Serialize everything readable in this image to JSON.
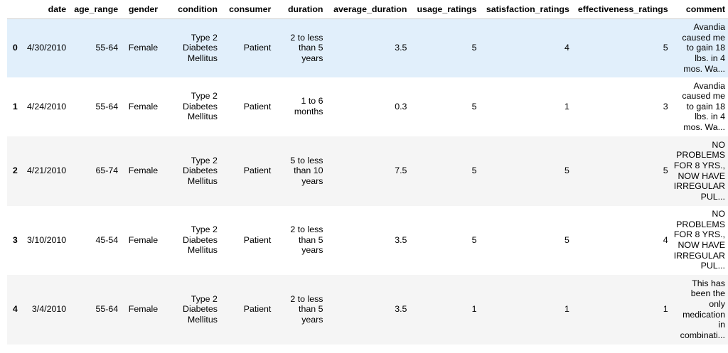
{
  "table": {
    "columns": [
      "date",
      "age_range",
      "gender",
      "condition",
      "consumer",
      "duration",
      "average_duration",
      "usage_ratings",
      "satisfaction_ratings",
      "effectiveness_ratings",
      "comment"
    ],
    "rows": [
      {
        "index": "0",
        "date": "4/30/2010",
        "age_range": "55-64",
        "gender": "Female",
        "condition": "Type 2 Diabetes Mellitus",
        "consumer": "Patient",
        "duration": "2 to less than 5 years",
        "average_duration": "3.5",
        "usage_ratings": "5",
        "satisfaction_ratings": "4",
        "effectiveness_ratings": "5",
        "comment": "Avandia caused me to gain 18 lbs. in 4 mos. Wa..."
      },
      {
        "index": "1",
        "date": "4/24/2010",
        "age_range": "55-64",
        "gender": "Female",
        "condition": "Type 2 Diabetes Mellitus",
        "consumer": "Patient",
        "duration": "1 to 6 months",
        "average_duration": "0.3",
        "usage_ratings": "5",
        "satisfaction_ratings": "1",
        "effectiveness_ratings": "3",
        "comment": "Avandia caused me to gain 18 lbs. in 4 mos. Wa..."
      },
      {
        "index": "2",
        "date": "4/21/2010",
        "age_range": "65-74",
        "gender": "Female",
        "condition": "Type 2 Diabetes Mellitus",
        "consumer": "Patient",
        "duration": "5 to less than 10 years",
        "average_duration": "7.5",
        "usage_ratings": "5",
        "satisfaction_ratings": "5",
        "effectiveness_ratings": "5",
        "comment": "NO PROBLEMS FOR 8 YRS., NOW HAVE IRREGULAR PUL..."
      },
      {
        "index": "3",
        "date": "3/10/2010",
        "age_range": "45-54",
        "gender": "Female",
        "condition": "Type 2 Diabetes Mellitus",
        "consumer": "Patient",
        "duration": "2 to less than 5 years",
        "average_duration": "3.5",
        "usage_ratings": "5",
        "satisfaction_ratings": "5",
        "effectiveness_ratings": "4",
        "comment": "NO PROBLEMS FOR 8 YRS., NOW HAVE IRREGULAR PUL..."
      },
      {
        "index": "4",
        "date": "3/4/2010",
        "age_range": "55-64",
        "gender": "Female",
        "condition": "Type 2 Diabetes Mellitus",
        "consumer": "Patient",
        "duration": "2 to less than 5 years",
        "average_duration": "3.5",
        "usage_ratings": "1",
        "satisfaction_ratings": "1",
        "effectiveness_ratings": "1",
        "comment": "This has been the only medication in combinati..."
      }
    ]
  },
  "colors": {
    "hover_row": "#e1effb",
    "striped_row": "#f5f5f5",
    "header_border": "#cfcfcf"
  }
}
